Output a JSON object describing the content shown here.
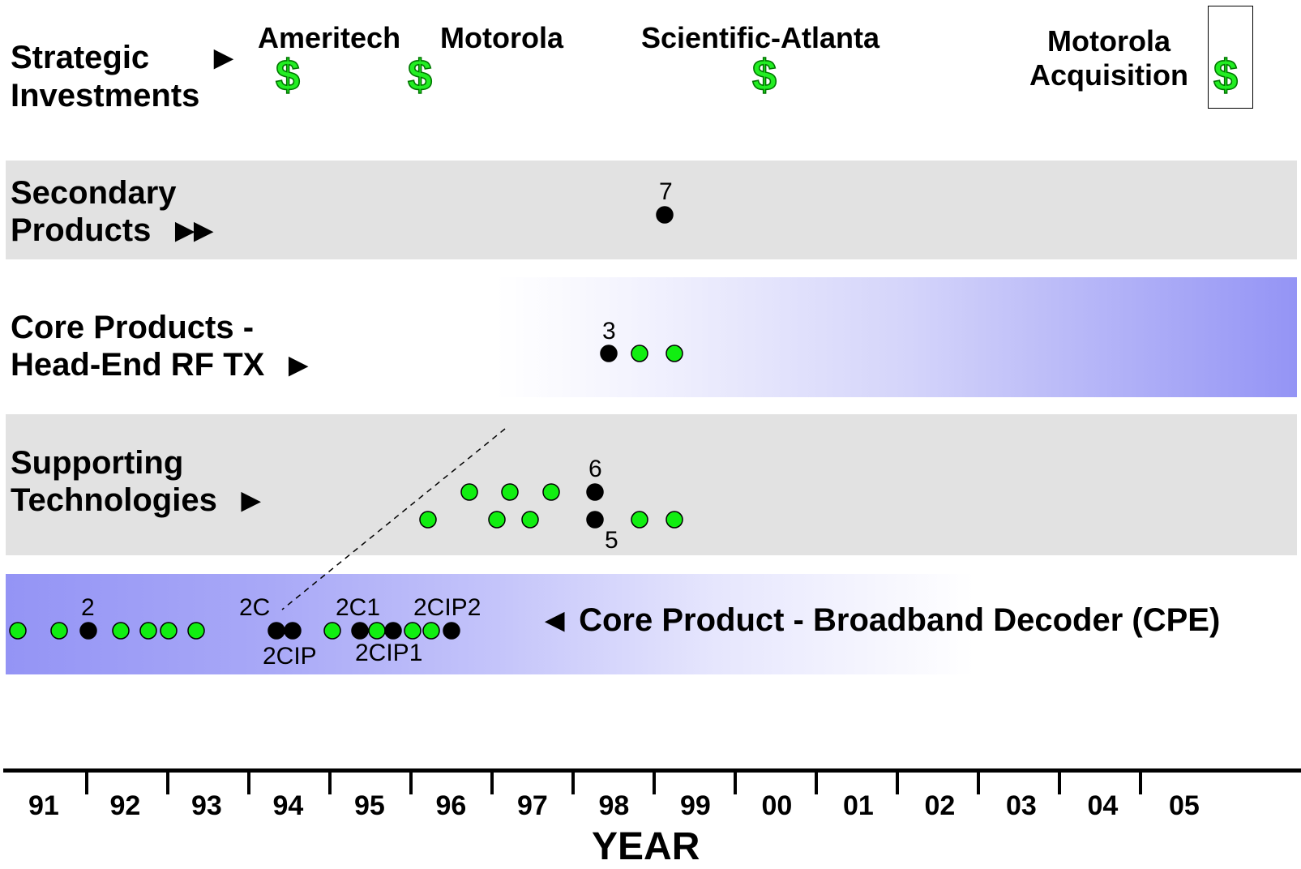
{
  "rows": {
    "strategic": {
      "line1": "Strategic",
      "line2": "Investments"
    },
    "secondary": {
      "line1": "Secondary",
      "line2": "Products"
    },
    "core_rf": {
      "line1": "Core Products -",
      "line2": "Head-End RF TX"
    },
    "supporting": {
      "line1": "Supporting",
      "line2": "Technologies"
    },
    "core_cpe": {
      "label": "Core Product - Broadband Decoder (CPE)"
    }
  },
  "investments": [
    {
      "name": "Ameritech",
      "symbol": "$"
    },
    {
      "name": "Motorola",
      "symbol": "$"
    },
    {
      "name": "Scientific-Atlanta",
      "symbol": "$"
    },
    {
      "name_line1": "Motorola",
      "name_line2": "Acquisition",
      "symbol": "$"
    }
  ],
  "dot_labels": {
    "secondary_7": "7",
    "rf_3": "3",
    "support_6": "6",
    "support_5": "5",
    "cpe_2": "2",
    "cpe_2C": "2C",
    "cpe_2CIP": "2CIP",
    "cpe_2C1": "2C1",
    "cpe_2CIP1": "2CIP1",
    "cpe_2CIP2": "2CIP2"
  },
  "axis": {
    "title": "YEAR",
    "years": [
      "91",
      "92",
      "93",
      "94",
      "95",
      "96",
      "97",
      "98",
      "99",
      "00",
      "01",
      "02",
      "03",
      "04",
      "05"
    ]
  },
  "colors": {
    "green_dot": "#11ee11",
    "black_dot": "#000000",
    "band_gray": "#e2e2e2",
    "band_blue": "#9494f5",
    "dollar_green": "#22ee22"
  },
  "dots": {
    "secondary": [
      {
        "color": "black",
        "label": "7"
      }
    ],
    "core_rf": [
      {
        "color": "black",
        "label": "3"
      },
      {
        "color": "green"
      },
      {
        "color": "green"
      }
    ],
    "supporting_upper": [
      {
        "color": "green"
      },
      {
        "color": "green"
      },
      {
        "color": "green"
      },
      {
        "color": "black",
        "label": "6"
      }
    ],
    "supporting_lower": [
      {
        "color": "green"
      },
      {
        "color": "green"
      },
      {
        "color": "green"
      },
      {
        "color": "black",
        "label": "5"
      },
      {
        "color": "green"
      },
      {
        "color": "green"
      }
    ],
    "core_cpe": [
      {
        "color": "green"
      },
      {
        "color": "green"
      },
      {
        "color": "black",
        "label": "2"
      },
      {
        "color": "green"
      },
      {
        "color": "green"
      },
      {
        "color": "green"
      },
      {
        "color": "green"
      },
      {
        "color": "black",
        "label": "2C"
      },
      {
        "color": "black",
        "label": "2CIP"
      },
      {
        "color": "green"
      },
      {
        "color": "black",
        "label": "2C1"
      },
      {
        "color": "green"
      },
      {
        "color": "black",
        "label": "2CIP1"
      },
      {
        "color": "green"
      },
      {
        "color": "green"
      },
      {
        "color": "black",
        "label": "2CIP2"
      }
    ]
  }
}
